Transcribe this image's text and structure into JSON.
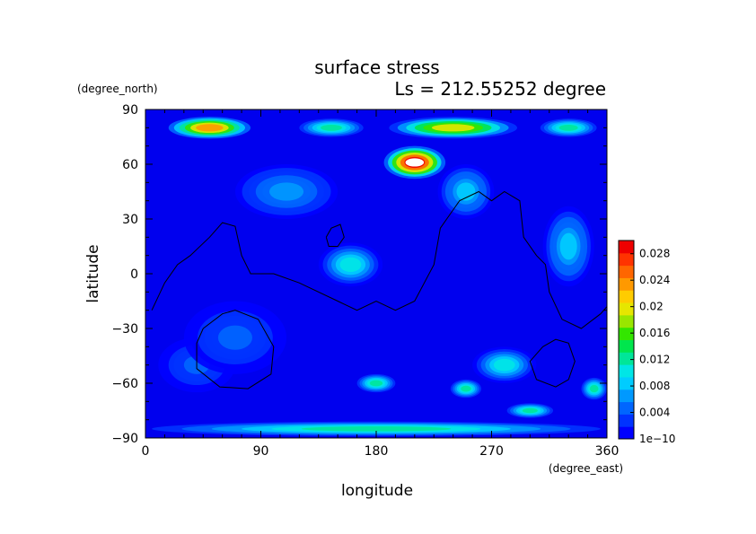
{
  "chart_data": {
    "type": "heatmap",
    "title": "surface stress",
    "subtitle": "Ls = 212.55252 degree",
    "xlabel": "longitude",
    "ylabel": "latitude",
    "x_units": "(degree_east)",
    "y_units": "(degree_north)",
    "xlim": [
      0,
      360
    ],
    "ylim": [
      -90,
      90
    ],
    "x_ticks": [
      "0",
      "90",
      "180",
      "270",
      "360"
    ],
    "y_ticks": [
      "90",
      "60",
      "30",
      "0",
      "−30",
      "−60",
      "−90"
    ],
    "colorbar": {
      "min": 1e-10,
      "max": 0.03,
      "tick_labels": [
        "0.028",
        "0.024",
        "0.02",
        "0.016",
        "0.012",
        "0.008",
        "0.004",
        "1e−10"
      ],
      "colors": [
        "#0000ff",
        "#0033ff",
        "#0066ff",
        "#0099ff",
        "#00ccff",
        "#00e6e6",
        "#00e699",
        "#00e64d",
        "#33e600",
        "#99e600",
        "#e6e600",
        "#ffcc00",
        "#ff9900",
        "#ff6600",
        "#ff3300",
        "#ee0000"
      ]
    },
    "grid": false,
    "features": [
      {
        "lon": 50,
        "lat": 80,
        "value": 0.024,
        "rx": 32,
        "ry": 6
      },
      {
        "lon": 240,
        "lat": 80,
        "value": 0.02,
        "rx": 50,
        "ry": 6
      },
      {
        "lon": 145,
        "lat": 80,
        "value": 0.012,
        "rx": 25,
        "ry": 5
      },
      {
        "lon": 210,
        "lat": 61,
        "value": 0.03,
        "rx": 24,
        "ry": 9
      },
      {
        "lon": 330,
        "lat": 80,
        "value": 0.012,
        "rx": 22,
        "ry": 5
      },
      {
        "lon": 330,
        "lat": 15,
        "value": 0.008,
        "rx": 20,
        "ry": 22
      },
      {
        "lon": 160,
        "lat": 5,
        "value": 0.01,
        "rx": 25,
        "ry": 12
      },
      {
        "lon": 250,
        "lat": 45,
        "value": 0.008,
        "rx": 22,
        "ry": 15
      },
      {
        "lon": 110,
        "lat": 45,
        "value": 0.006,
        "rx": 40,
        "ry": 15
      },
      {
        "lon": 280,
        "lat": -50,
        "value": 0.01,
        "rx": 25,
        "ry": 10
      },
      {
        "lon": 180,
        "lat": -60,
        "value": 0.012,
        "rx": 15,
        "ry": 5
      },
      {
        "lon": 250,
        "lat": -63,
        "value": 0.012,
        "rx": 12,
        "ry": 5
      },
      {
        "lon": 300,
        "lat": -75,
        "value": 0.012,
        "rx": 18,
        "ry": 4
      },
      {
        "lon": 350,
        "lat": -63,
        "value": 0.012,
        "rx": 10,
        "ry": 6
      },
      {
        "lon": 180,
        "lat": -85,
        "value": 0.012,
        "rx": 175,
        "ry": 4
      },
      {
        "lon": 40,
        "lat": -50,
        "value": 0.004,
        "rx": 30,
        "ry": 15
      },
      {
        "lon": 70,
        "lat": -35,
        "value": 0.004,
        "rx": 40,
        "ry": 20
      }
    ],
    "contour_lines": [
      {
        "name": "dichotomy",
        "points": [
          [
            5,
            -20
          ],
          [
            15,
            -5
          ],
          [
            25,
            5
          ],
          [
            35,
            10
          ],
          [
            50,
            20
          ],
          [
            60,
            28
          ],
          [
            70,
            26
          ],
          [
            75,
            10
          ],
          [
            82,
            0
          ],
          [
            100,
            0
          ],
          [
            120,
            -5
          ],
          [
            150,
            -15
          ],
          [
            165,
            -20
          ],
          [
            180,
            -15
          ],
          [
            195,
            -20
          ],
          [
            210,
            -15
          ],
          [
            225,
            5
          ],
          [
            230,
            25
          ],
          [
            245,
            40
          ],
          [
            260,
            45
          ],
          [
            270,
            40
          ],
          [
            280,
            45
          ],
          [
            292,
            40
          ],
          [
            295,
            20
          ],
          [
            305,
            10
          ],
          [
            312,
            5
          ],
          [
            315,
            -10
          ],
          [
            325,
            -25
          ],
          [
            340,
            -30
          ],
          [
            355,
            -22
          ],
          [
            360,
            -18
          ]
        ]
      },
      {
        "name": "hellas",
        "points": [
          [
            45,
            -30
          ],
          [
            60,
            -22
          ],
          [
            70,
            -20
          ],
          [
            88,
            -25
          ],
          [
            100,
            -40
          ],
          [
            98,
            -55
          ],
          [
            80,
            -63
          ],
          [
            58,
            -62
          ],
          [
            40,
            -52
          ],
          [
            40,
            -38
          ],
          [
            45,
            -30
          ]
        ]
      },
      {
        "name": "argyre",
        "points": [
          [
            310,
            -40
          ],
          [
            320,
            -36
          ],
          [
            330,
            -38
          ],
          [
            335,
            -48
          ],
          [
            330,
            -58
          ],
          [
            320,
            -62
          ],
          [
            305,
            -58
          ],
          [
            300,
            -48
          ],
          [
            310,
            -40
          ]
        ]
      },
      {
        "name": "elysium",
        "points": [
          [
            141,
            20
          ],
          [
            145,
            25
          ],
          [
            152,
            27
          ],
          [
            155,
            20
          ],
          [
            150,
            15
          ],
          [
            143,
            15
          ],
          [
            141,
            20
          ]
        ]
      }
    ]
  }
}
